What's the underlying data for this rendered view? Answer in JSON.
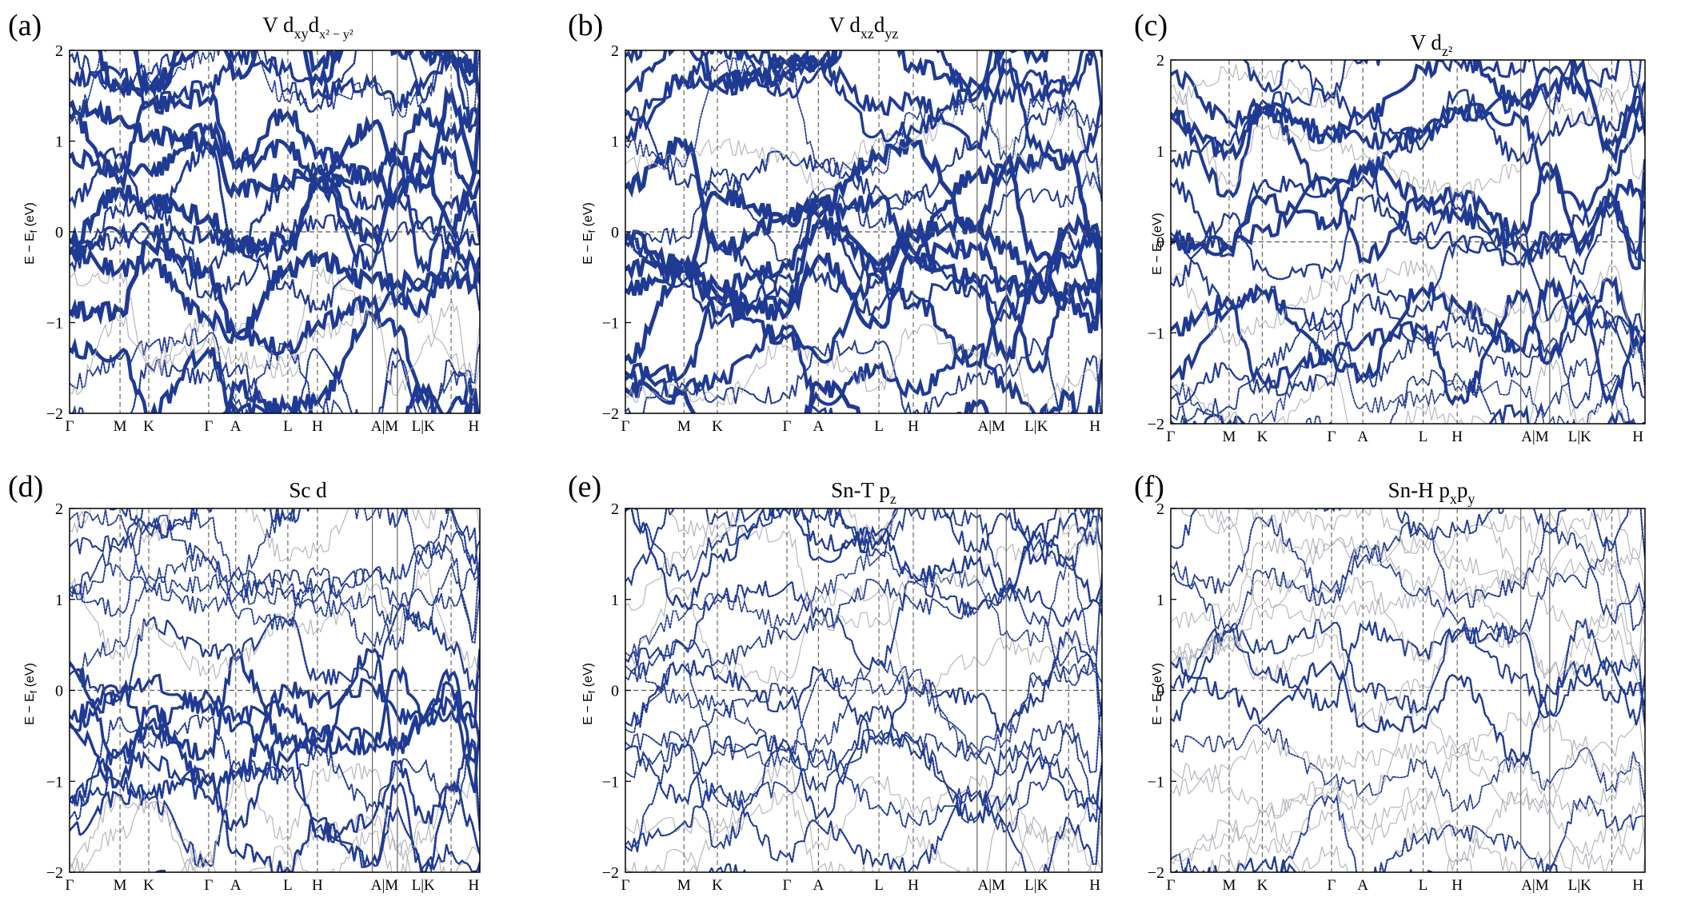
{
  "figure": {
    "description_kind": "orbital-projected band structure, 6 panels",
    "band_color": "#1f3a93",
    "gray_band_color": "#a9a9b2",
    "fermi_line_color": "#555555"
  },
  "chart_data": [
    {
      "type": "line",
      "panel_label": "(a)",
      "title_main": "V d",
      "title_sub1": "xy",
      "title_mid": "d",
      "title_sub2": "x² − y²",
      "title_sup": "",
      "ylabel_main": "E − E",
      "ylabel_sub": "f",
      "ylabel_unit": " (eV)",
      "ylim": [
        -2,
        2
      ],
      "yticks": [
        "−2",
        "−1",
        "0",
        "1",
        "2"
      ],
      "yvalues": [
        -2,
        -1,
        0,
        1,
        2
      ],
      "kpath": [
        "Γ",
        "M",
        "K",
        "Γ",
        "A",
        "L",
        "H",
        "A|M",
        "L|K",
        "H"
      ],
      "weight_scale": 1.0
    },
    {
      "type": "line",
      "panel_label": "(b)",
      "title_main": "V d",
      "title_sub1": "xz",
      "title_mid": "d",
      "title_sub2": "yz",
      "title_sup": "",
      "ylabel_main": "E − E",
      "ylabel_sub": "f",
      "ylabel_unit": " (eV)",
      "ylim": [
        -2,
        2
      ],
      "yticks": [
        "−2",
        "−1",
        "0",
        "1",
        "2"
      ],
      "yvalues": [
        -2,
        -1,
        0,
        1,
        2
      ],
      "kpath": [
        "Γ",
        "M",
        "K",
        "Γ",
        "A",
        "L",
        "H",
        "A|M",
        "L|K",
        "H"
      ],
      "weight_scale": 1.0
    },
    {
      "type": "line",
      "panel_label": "(c)",
      "title_main": "V d",
      "title_sub1": "z²",
      "title_mid": "",
      "title_sub2": "",
      "title_sup": "",
      "ylabel_main": "E − E",
      "ylabel_sub": "f",
      "ylabel_unit": " (eV)",
      "ylim": [
        -2,
        2
      ],
      "yticks": [
        "−2",
        "−1",
        "0",
        "1",
        "2"
      ],
      "yvalues": [
        -2,
        -1,
        0,
        1,
        2
      ],
      "kpath": [
        "Γ",
        "M",
        "K",
        "Γ",
        "A",
        "L",
        "H",
        "A|M",
        "L|K",
        "H"
      ],
      "weight_scale": 0.8
    },
    {
      "type": "line",
      "panel_label": "(d)",
      "title_main": "Sc d",
      "title_sub1": "",
      "title_mid": "",
      "title_sub2": "",
      "title_sup": "",
      "ylabel_main": "E − E",
      "ylabel_sub": "f",
      "ylabel_unit": " (eV)",
      "ylim": [
        -2,
        2
      ],
      "yticks": [
        "−2",
        "−1",
        "0",
        "1",
        "2"
      ],
      "yvalues": [
        -2,
        -1,
        0,
        1,
        2
      ],
      "kpath": [
        "Γ",
        "M",
        "K",
        "Γ",
        "A",
        "L",
        "H",
        "A|M",
        "L|K",
        "H"
      ],
      "weight_scale": 0.6
    },
    {
      "type": "line",
      "panel_label": "(e)",
      "title_main": "Sn-T p",
      "title_sub1": "z",
      "title_mid": "",
      "title_sub2": "",
      "title_sup": "",
      "ylabel_main": "E − E",
      "ylabel_sub": "f",
      "ylabel_unit": " (eV)",
      "ylim": [
        -2,
        2
      ],
      "yticks": [
        "−2",
        "−1",
        "0",
        "1",
        "2"
      ],
      "yvalues": [
        -2,
        -1,
        0,
        1,
        2
      ],
      "kpath": [
        "Γ",
        "M",
        "K",
        "Γ",
        "A",
        "L",
        "H",
        "A|M",
        "L|K",
        "H"
      ],
      "weight_scale": 0.35
    },
    {
      "type": "line",
      "panel_label": "(f)",
      "title_main": "Sn-H p",
      "title_sub1": "x",
      "title_mid": "p",
      "title_sub2": "y",
      "title_sup": "",
      "ylabel_main": "E − E",
      "ylabel_sub": "f",
      "ylabel_unit": " (eV)",
      "ylim": [
        -2,
        2
      ],
      "yticks": [
        "−2",
        "−1",
        "0",
        "1",
        "2"
      ],
      "yvalues": [
        -2,
        -1,
        0,
        1,
        2
      ],
      "kpath": [
        "Γ",
        "M",
        "K",
        "Γ",
        "A",
        "L",
        "H",
        "A|M",
        "L|K",
        "H"
      ],
      "weight_scale": 0.35
    }
  ]
}
